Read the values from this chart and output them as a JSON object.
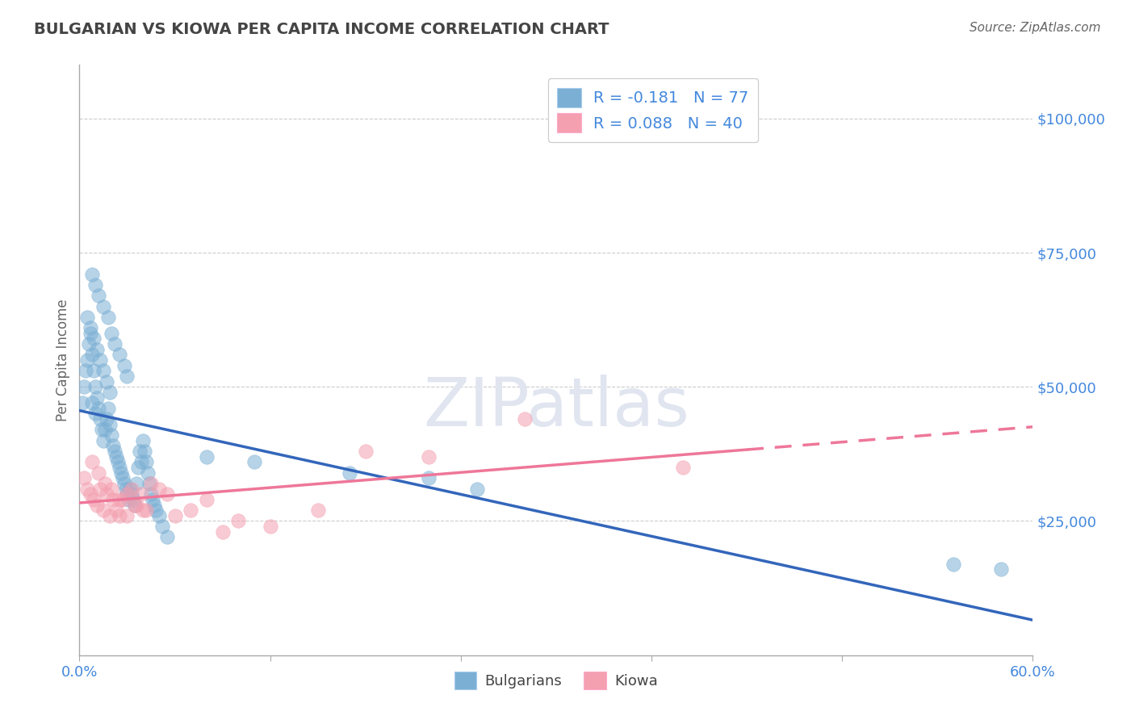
{
  "title": "BULGARIAN VS KIOWA PER CAPITA INCOME CORRELATION CHART",
  "source": "Source: ZipAtlas.com",
  "ylabel": "Per Capita Income",
  "yticks": [
    0,
    25000,
    50000,
    75000,
    100000
  ],
  "ytick_labels": [
    "",
    "$25,000",
    "$50,000",
    "$75,000",
    "$100,000"
  ],
  "xlim": [
    0.0,
    0.6
  ],
  "ylim": [
    0,
    110000
  ],
  "bulgarian_R": -0.181,
  "bulgarian_N": 77,
  "kiowa_R": 0.088,
  "kiowa_N": 40,
  "blue_color": "#7BAFD4",
  "pink_color": "#F4A0B0",
  "blue_line_color": "#3366BB",
  "pink_line_color": "#EE7799",
  "title_color": "#444444",
  "axis_label_color": "#4488DD",
  "background_color": "#FFFFFF",
  "bulgarian_x": [
    0.002,
    0.003,
    0.004,
    0.005,
    0.006,
    0.007,
    0.008,
    0.009,
    0.01,
    0.011,
    0.012,
    0.013,
    0.014,
    0.015,
    0.016,
    0.017,
    0.018,
    0.019,
    0.02,
    0.021,
    0.022,
    0.023,
    0.024,
    0.025,
    0.026,
    0.027,
    0.028,
    0.029,
    0.03,
    0.031,
    0.032,
    0.033,
    0.034,
    0.035,
    0.036,
    0.037,
    0.038,
    0.039,
    0.04,
    0.041,
    0.042,
    0.043,
    0.044,
    0.045,
    0.046,
    0.047,
    0.048,
    0.05,
    0.052,
    0.055,
    0.008,
    0.01,
    0.012,
    0.015,
    0.018,
    0.02,
    0.022,
    0.025,
    0.028,
    0.03,
    0.005,
    0.007,
    0.009,
    0.011,
    0.013,
    0.015,
    0.017,
    0.019,
    0.008,
    0.01,
    0.08,
    0.11,
    0.17,
    0.22,
    0.25,
    0.55,
    0.58
  ],
  "bulgarian_y": [
    47000,
    50000,
    53000,
    55000,
    58000,
    60000,
    56000,
    53000,
    50000,
    48000,
    46000,
    44000,
    42000,
    40000,
    42000,
    44000,
    46000,
    43000,
    41000,
    39000,
    38000,
    37000,
    36000,
    35000,
    34000,
    33000,
    32000,
    31000,
    30000,
    29000,
    31000,
    30000,
    29000,
    28000,
    32000,
    35000,
    38000,
    36000,
    40000,
    38000,
    36000,
    34000,
    32000,
    30000,
    29000,
    28000,
    27000,
    26000,
    24000,
    22000,
    71000,
    69000,
    67000,
    65000,
    63000,
    60000,
    58000,
    56000,
    54000,
    52000,
    63000,
    61000,
    59000,
    57000,
    55000,
    53000,
    51000,
    49000,
    47000,
    45000,
    37000,
    36000,
    34000,
    33000,
    31000,
    17000,
    16000
  ],
  "kiowa_x": [
    0.003,
    0.005,
    0.007,
    0.009,
    0.011,
    0.013,
    0.015,
    0.017,
    0.019,
    0.021,
    0.023,
    0.025,
    0.027,
    0.03,
    0.033,
    0.036,
    0.039,
    0.042,
    0.045,
    0.05,
    0.055,
    0.06,
    0.07,
    0.08,
    0.09,
    0.1,
    0.12,
    0.15,
    0.18,
    0.22,
    0.008,
    0.012,
    0.016,
    0.02,
    0.025,
    0.03,
    0.035,
    0.04,
    0.28,
    0.38
  ],
  "kiowa_y": [
    33000,
    31000,
    30000,
    29000,
    28000,
    31000,
    27000,
    30000,
    26000,
    29000,
    27000,
    26000,
    29000,
    26000,
    31000,
    28000,
    30000,
    27000,
    32000,
    31000,
    30000,
    26000,
    27000,
    29000,
    23000,
    25000,
    24000,
    27000,
    38000,
    37000,
    36000,
    34000,
    32000,
    31000,
    29000,
    30000,
    28000,
    27000,
    44000,
    35000
  ]
}
